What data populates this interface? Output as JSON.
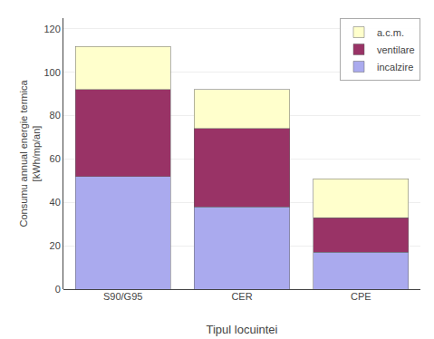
{
  "chart_data": {
    "type": "bar",
    "stacked": true,
    "categories": [
      "S90/G95",
      "CER",
      "CPE"
    ],
    "series": [
      {
        "name": "incalzire",
        "color": "#aaaaee",
        "values": [
          52,
          38,
          17
        ]
      },
      {
        "name": "ventilare",
        "color": "#993366",
        "values": [
          40,
          36,
          16
        ]
      },
      {
        "name": "a.c.m.",
        "color": "#ffffcc",
        "values": [
          20,
          18,
          18
        ]
      }
    ],
    "xlabel": "Tipul locuintei",
    "ylabel": "Consumu annual energie termica\n[kWh/mp/an]",
    "ylim": [
      0,
      125
    ],
    "yticks": [
      0,
      20,
      40,
      60,
      80,
      100,
      120
    ],
    "grid": true,
    "legend": "upper right"
  }
}
